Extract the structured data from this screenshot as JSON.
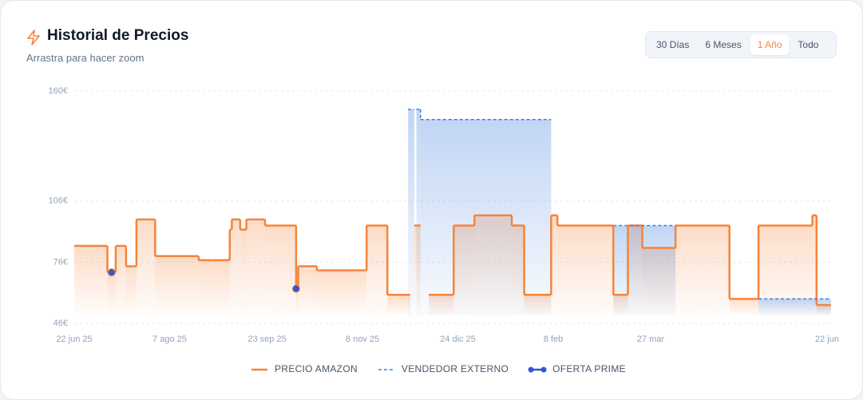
{
  "header": {
    "title": "Historial de Precios",
    "subtitle": "Arrastra para hacer zoom"
  },
  "range_buttons": [
    {
      "label": "30 Días",
      "active": false
    },
    {
      "label": "6 Meses",
      "active": false
    },
    {
      "label": "1 Año",
      "active": true
    },
    {
      "label": "Todo",
      "active": false
    }
  ],
  "chart_data": {
    "type": "step",
    "xlim": [
      "2025-06-22",
      "2026-06-22"
    ],
    "xticks": [
      {
        "value": "2025-06-22",
        "label": "22 jun 25"
      },
      {
        "value": "2025-08-07",
        "label": "7 ago 25"
      },
      {
        "value": "2025-09-23",
        "label": "23 sep 25"
      },
      {
        "value": "2025-11-08",
        "label": "8 nov 25"
      },
      {
        "value": "2025-12-24",
        "label": "24 dic 25"
      },
      {
        "value": "2026-02-08",
        "label": "8 feb"
      },
      {
        "value": "2026-03-27",
        "label": "27 mar"
      },
      {
        "value": "2026-06-22",
        "label": "22 jun"
      }
    ],
    "ylim": [
      46,
      160
    ],
    "yticks": [
      {
        "value": 46,
        "label": "46€"
      },
      {
        "value": 76,
        "label": "76€"
      },
      {
        "value": 106,
        "label": "106€"
      },
      {
        "value": 160,
        "label": "160€"
      }
    ],
    "grid": true,
    "series": [
      {
        "name": "PRECIO AMAZON",
        "color": "#f5843b",
        "style": "solid",
        "x": [
          "2025-06-22",
          "2025-07-08",
          "2025-07-12",
          "2025-07-17",
          "2025-07-22",
          "2025-07-31",
          "2025-08-21",
          "2025-09-05",
          "2025-09-06",
          "2025-09-10",
          "2025-09-13",
          "2025-09-22",
          "2025-10-07",
          "2025-10-08",
          "2025-10-17",
          "2025-11-10",
          "2025-11-20",
          "2025-12-01",
          "2025-12-03",
          "2025-12-06",
          "2025-12-10",
          "2025-12-22",
          "2026-01-01",
          "2026-01-19",
          "2026-01-25",
          "2026-02-07",
          "2026-02-10",
          "2026-03-09",
          "2026-03-16",
          "2026-03-23",
          "2026-04-08",
          "2026-05-04",
          "2026-05-18",
          "2026-06-13",
          "2026-06-15"
        ],
        "values": [
          84,
          71,
          84,
          74,
          97,
          79,
          77,
          92,
          97,
          92,
          97,
          94,
          63,
          74,
          72,
          94,
          60,
          null,
          94,
          null,
          60,
          94,
          99,
          94,
          60,
          99,
          94,
          60,
          94,
          83,
          94,
          58,
          94,
          99,
          55
        ]
      },
      {
        "name": "VENDEDOR EXTERNO",
        "color": "#3b7ddd",
        "style": "dashed",
        "x": [
          "2025-11-30",
          "2025-12-03",
          "2025-12-04",
          "2025-12-06",
          "2026-02-07",
          "2026-03-09",
          "2026-04-08",
          "2026-05-18"
        ],
        "values": [
          151,
          null,
          151,
          146,
          null,
          94,
          null,
          58
        ]
      },
      {
        "name": "OFERTA PRIME",
        "color": "#3157d6",
        "style": "points",
        "x": [
          "2025-07-10",
          "2025-10-07"
        ],
        "values": [
          71,
          63
        ]
      }
    ]
  }
}
